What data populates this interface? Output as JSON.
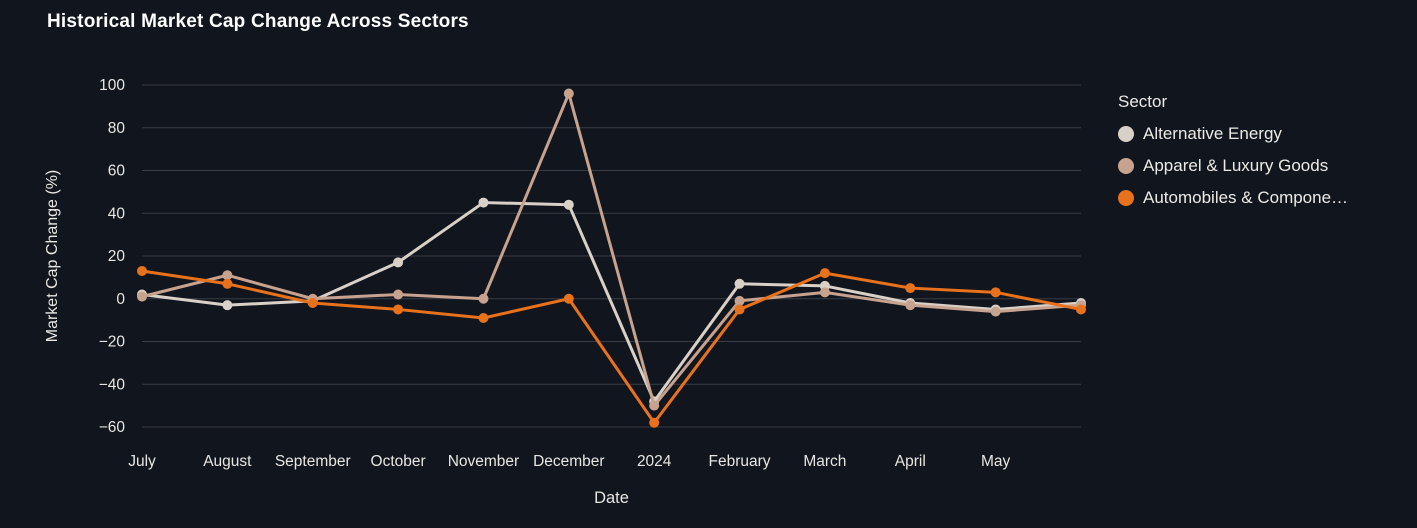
{
  "title": "Historical Market Cap Change Across Sectors",
  "chart_data": {
    "type": "line",
    "title": "Historical Market Cap Change Across Sectors",
    "xlabel": "Date",
    "ylabel": "Market Cap Change (%)",
    "x_tick_labels": [
      "July",
      "August",
      "September",
      "October",
      "November",
      "December",
      "2024",
      "February",
      "March",
      "April",
      "May"
    ],
    "y_ticks": [
      100,
      80,
      60,
      40,
      20,
      0,
      -20,
      -40,
      -60
    ],
    "y_tick_labels": [
      "100",
      "80",
      "60",
      "40",
      "20",
      "0",
      "−20",
      "−40",
      "−60"
    ],
    "ylim": [
      -60,
      100
    ],
    "num_points": 12,
    "grid": true,
    "legend": {
      "title": "Sector",
      "position": "right"
    },
    "series": [
      {
        "name": "Alternative Energy",
        "color": "#d9d1c7",
        "values": [
          2,
          -3,
          -1,
          17,
          45,
          44,
          -48,
          7,
          6,
          -2,
          -5,
          -2
        ]
      },
      {
        "name": "Apparel & Luxury Goods",
        "color": "#c7a28f",
        "values": [
          1,
          11,
          0,
          2,
          0,
          96,
          -50,
          -1,
          3,
          -3,
          -6,
          -3
        ]
      },
      {
        "name": "Automobiles & Compone…",
        "color": "#e8721c",
        "values": [
          13,
          7,
          -2,
          -5,
          -9,
          0,
          -58,
          -5,
          12,
          5,
          3,
          -5
        ]
      }
    ]
  },
  "colors": {
    "background": "#11151e",
    "text": "#e8e6e3",
    "title_text": "#ffffff",
    "grid": "rgba(255,255,255,0.17)"
  }
}
